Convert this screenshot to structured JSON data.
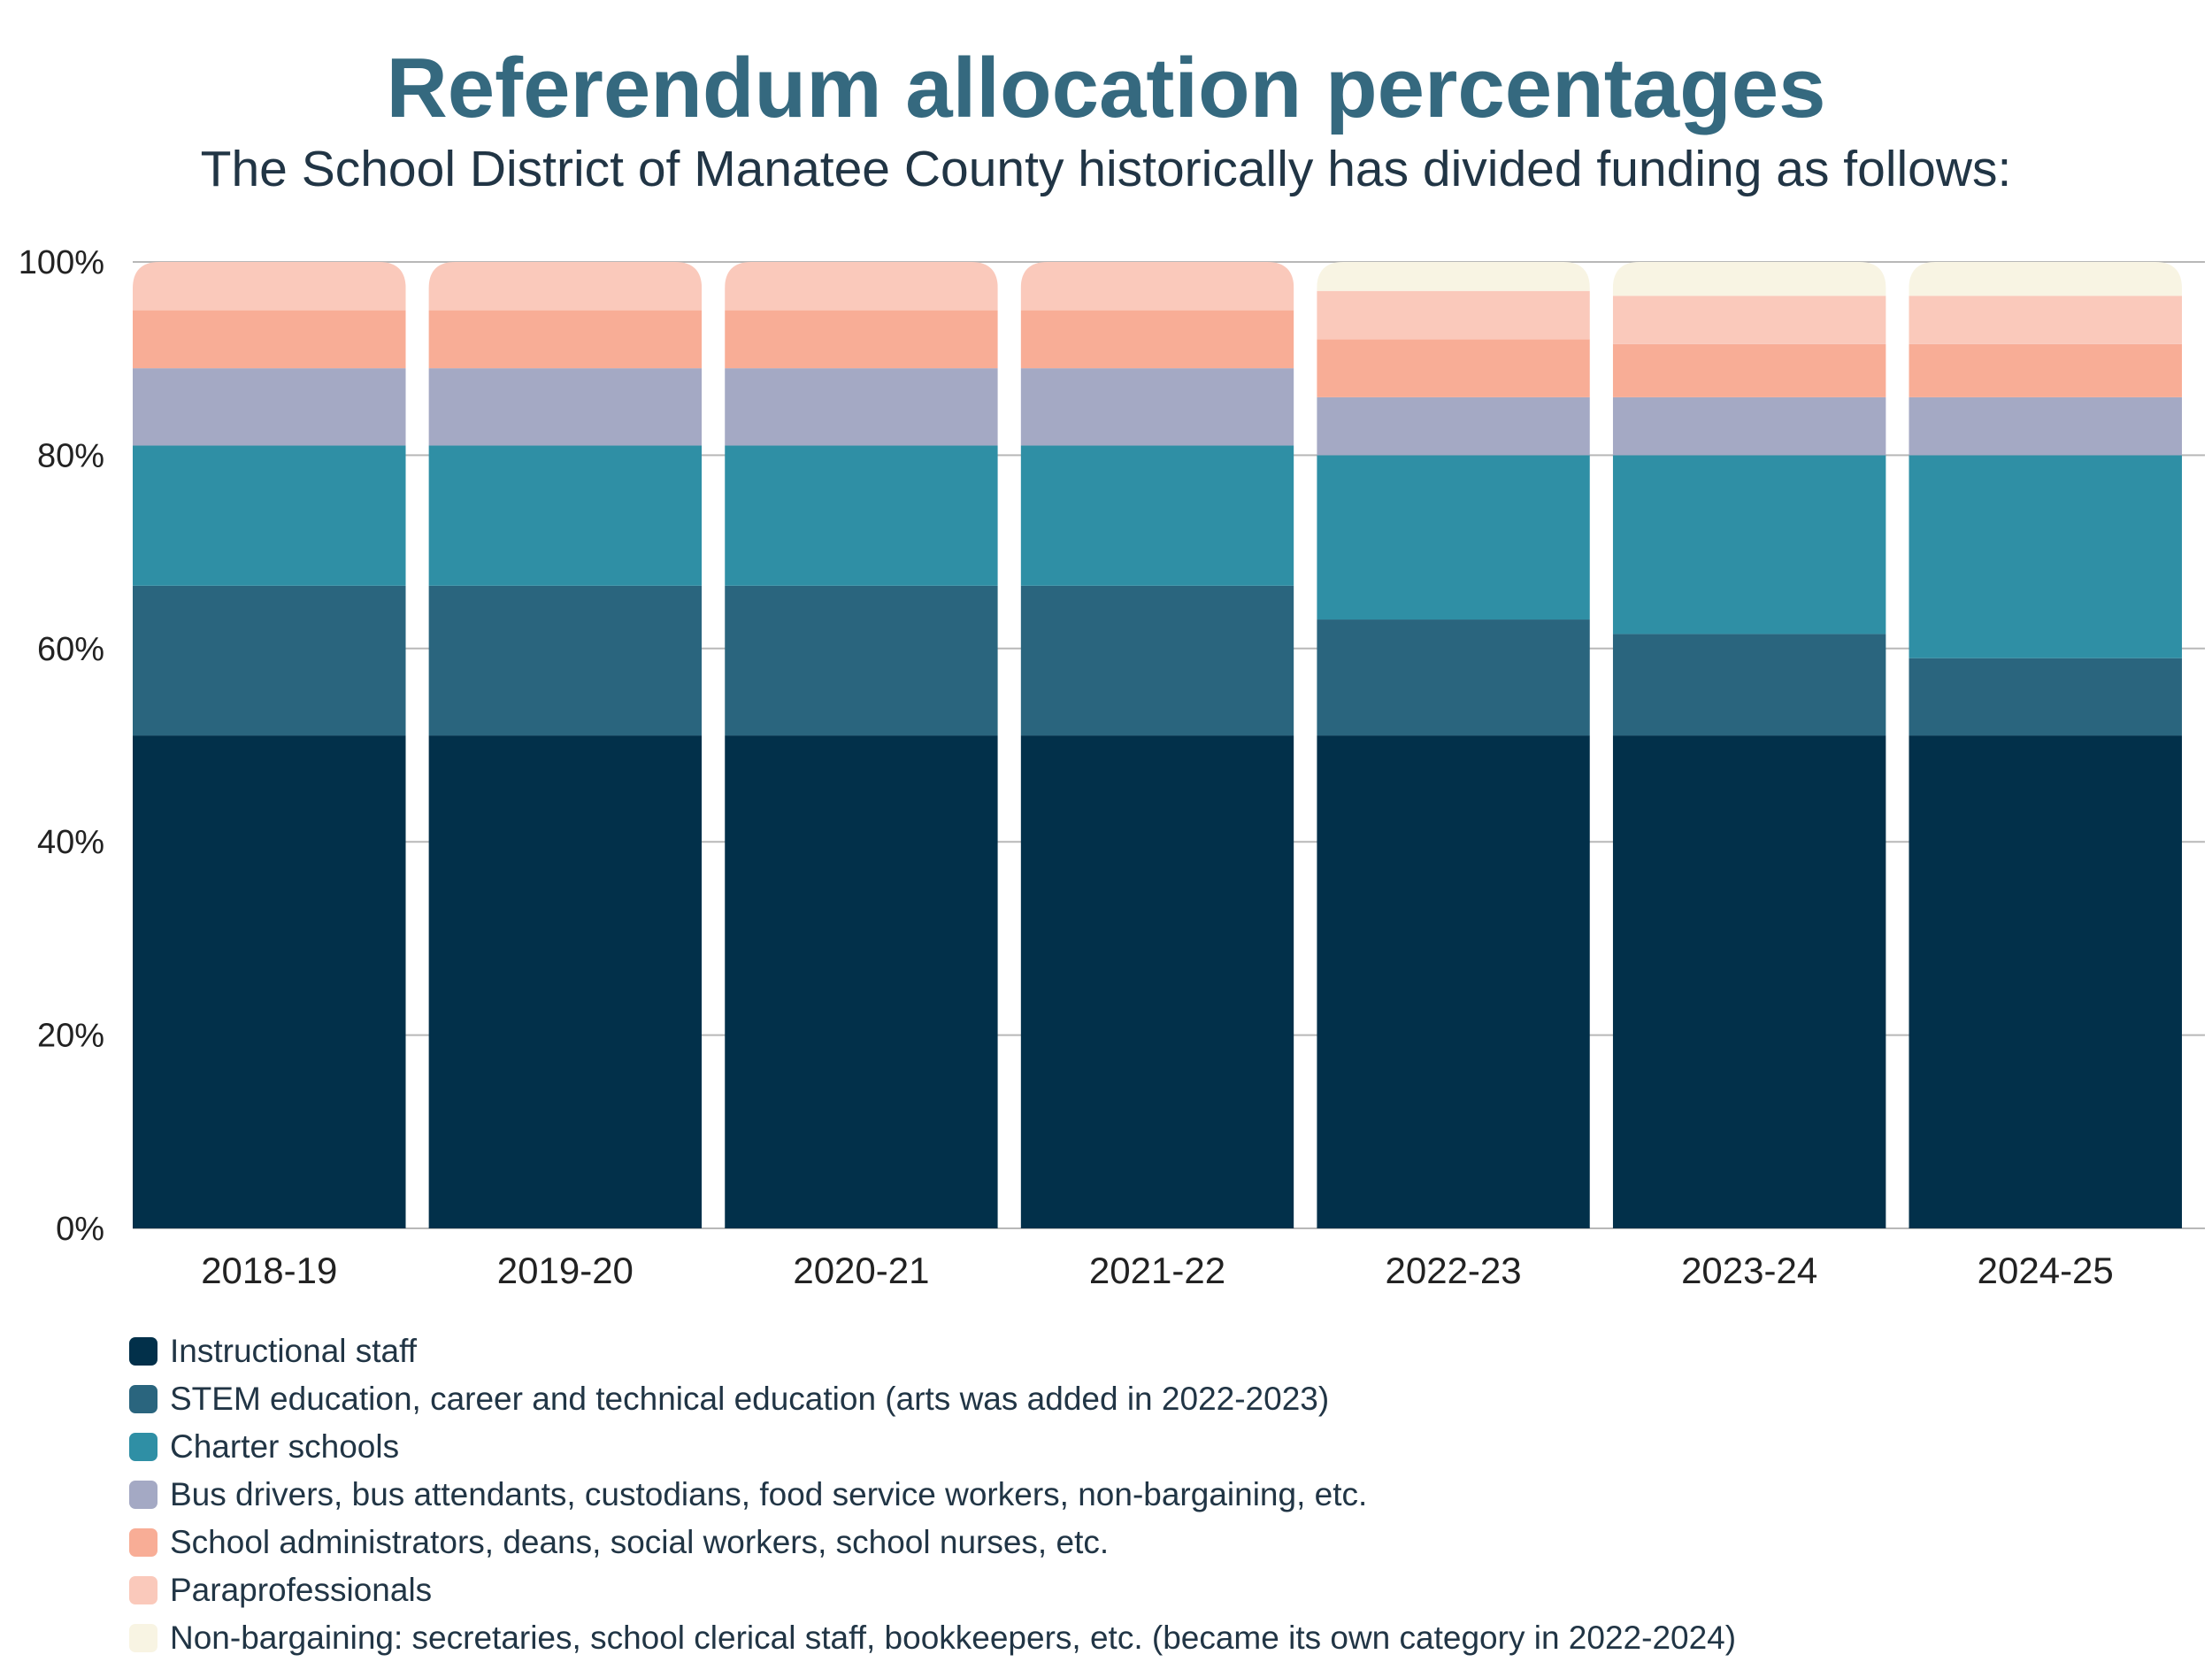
{
  "header": {
    "title": "Referendum allocation percentages",
    "subtitle": "The School District of Manatee County historically has divided funding as follows:"
  },
  "chart_data": {
    "type": "bar",
    "stacked": true,
    "title": "Referendum allocation percentages",
    "subtitle": "The School District of Manatee County historically has divided funding as follows:",
    "categories": [
      "2018-19",
      "2019-20",
      "2020-21",
      "2021-22",
      "2022-23",
      "2023-24",
      "2024-25"
    ],
    "ylim": [
      0,
      100
    ],
    "yticks": [
      0,
      20,
      40,
      60,
      80,
      100
    ],
    "ytick_labels": [
      "0%",
      "20%",
      "40%",
      "60%",
      "80%",
      "100%"
    ],
    "grid": true,
    "legend_position": "bottom-left",
    "series": [
      {
        "name": "Instructional staff",
        "color": "#02304a",
        "values": [
          51,
          51,
          51,
          51,
          51,
          51,
          51
        ]
      },
      {
        "name": "STEM education, career and technical education (arts was added in 2022-2023)",
        "color": "#2a657e",
        "values": [
          15.5,
          15.5,
          15.5,
          15.5,
          12,
          10.5,
          8
        ]
      },
      {
        "name": "Charter schools",
        "color": "#2f8fa5",
        "values": [
          14.5,
          14.5,
          14.5,
          14.5,
          17,
          18.5,
          21
        ]
      },
      {
        "name": "Bus drivers, bus attendants, custodians, food service workers, non-bargaining, etc.",
        "color": "#a4a9c4",
        "values": [
          8,
          8,
          8,
          8,
          6,
          6,
          6
        ]
      },
      {
        "name": "School administrators, deans, social workers, school nurses, etc.",
        "color": "#f8ad96",
        "values": [
          6,
          6,
          6,
          6,
          6,
          5.5,
          5.5
        ]
      },
      {
        "name": "Paraprofessionals",
        "color": "#fac9bb",
        "values": [
          5,
          5,
          5,
          5,
          5,
          5,
          5
        ]
      },
      {
        "name": "Non-bargaining: secretaries, school clerical staff, bookkeepers, etc. (became its own category in 2022-2024)",
        "color": "#f8f4e3",
        "values": [
          0,
          0,
          0,
          0,
          3,
          3.5,
          3.5
        ]
      }
    ]
  }
}
